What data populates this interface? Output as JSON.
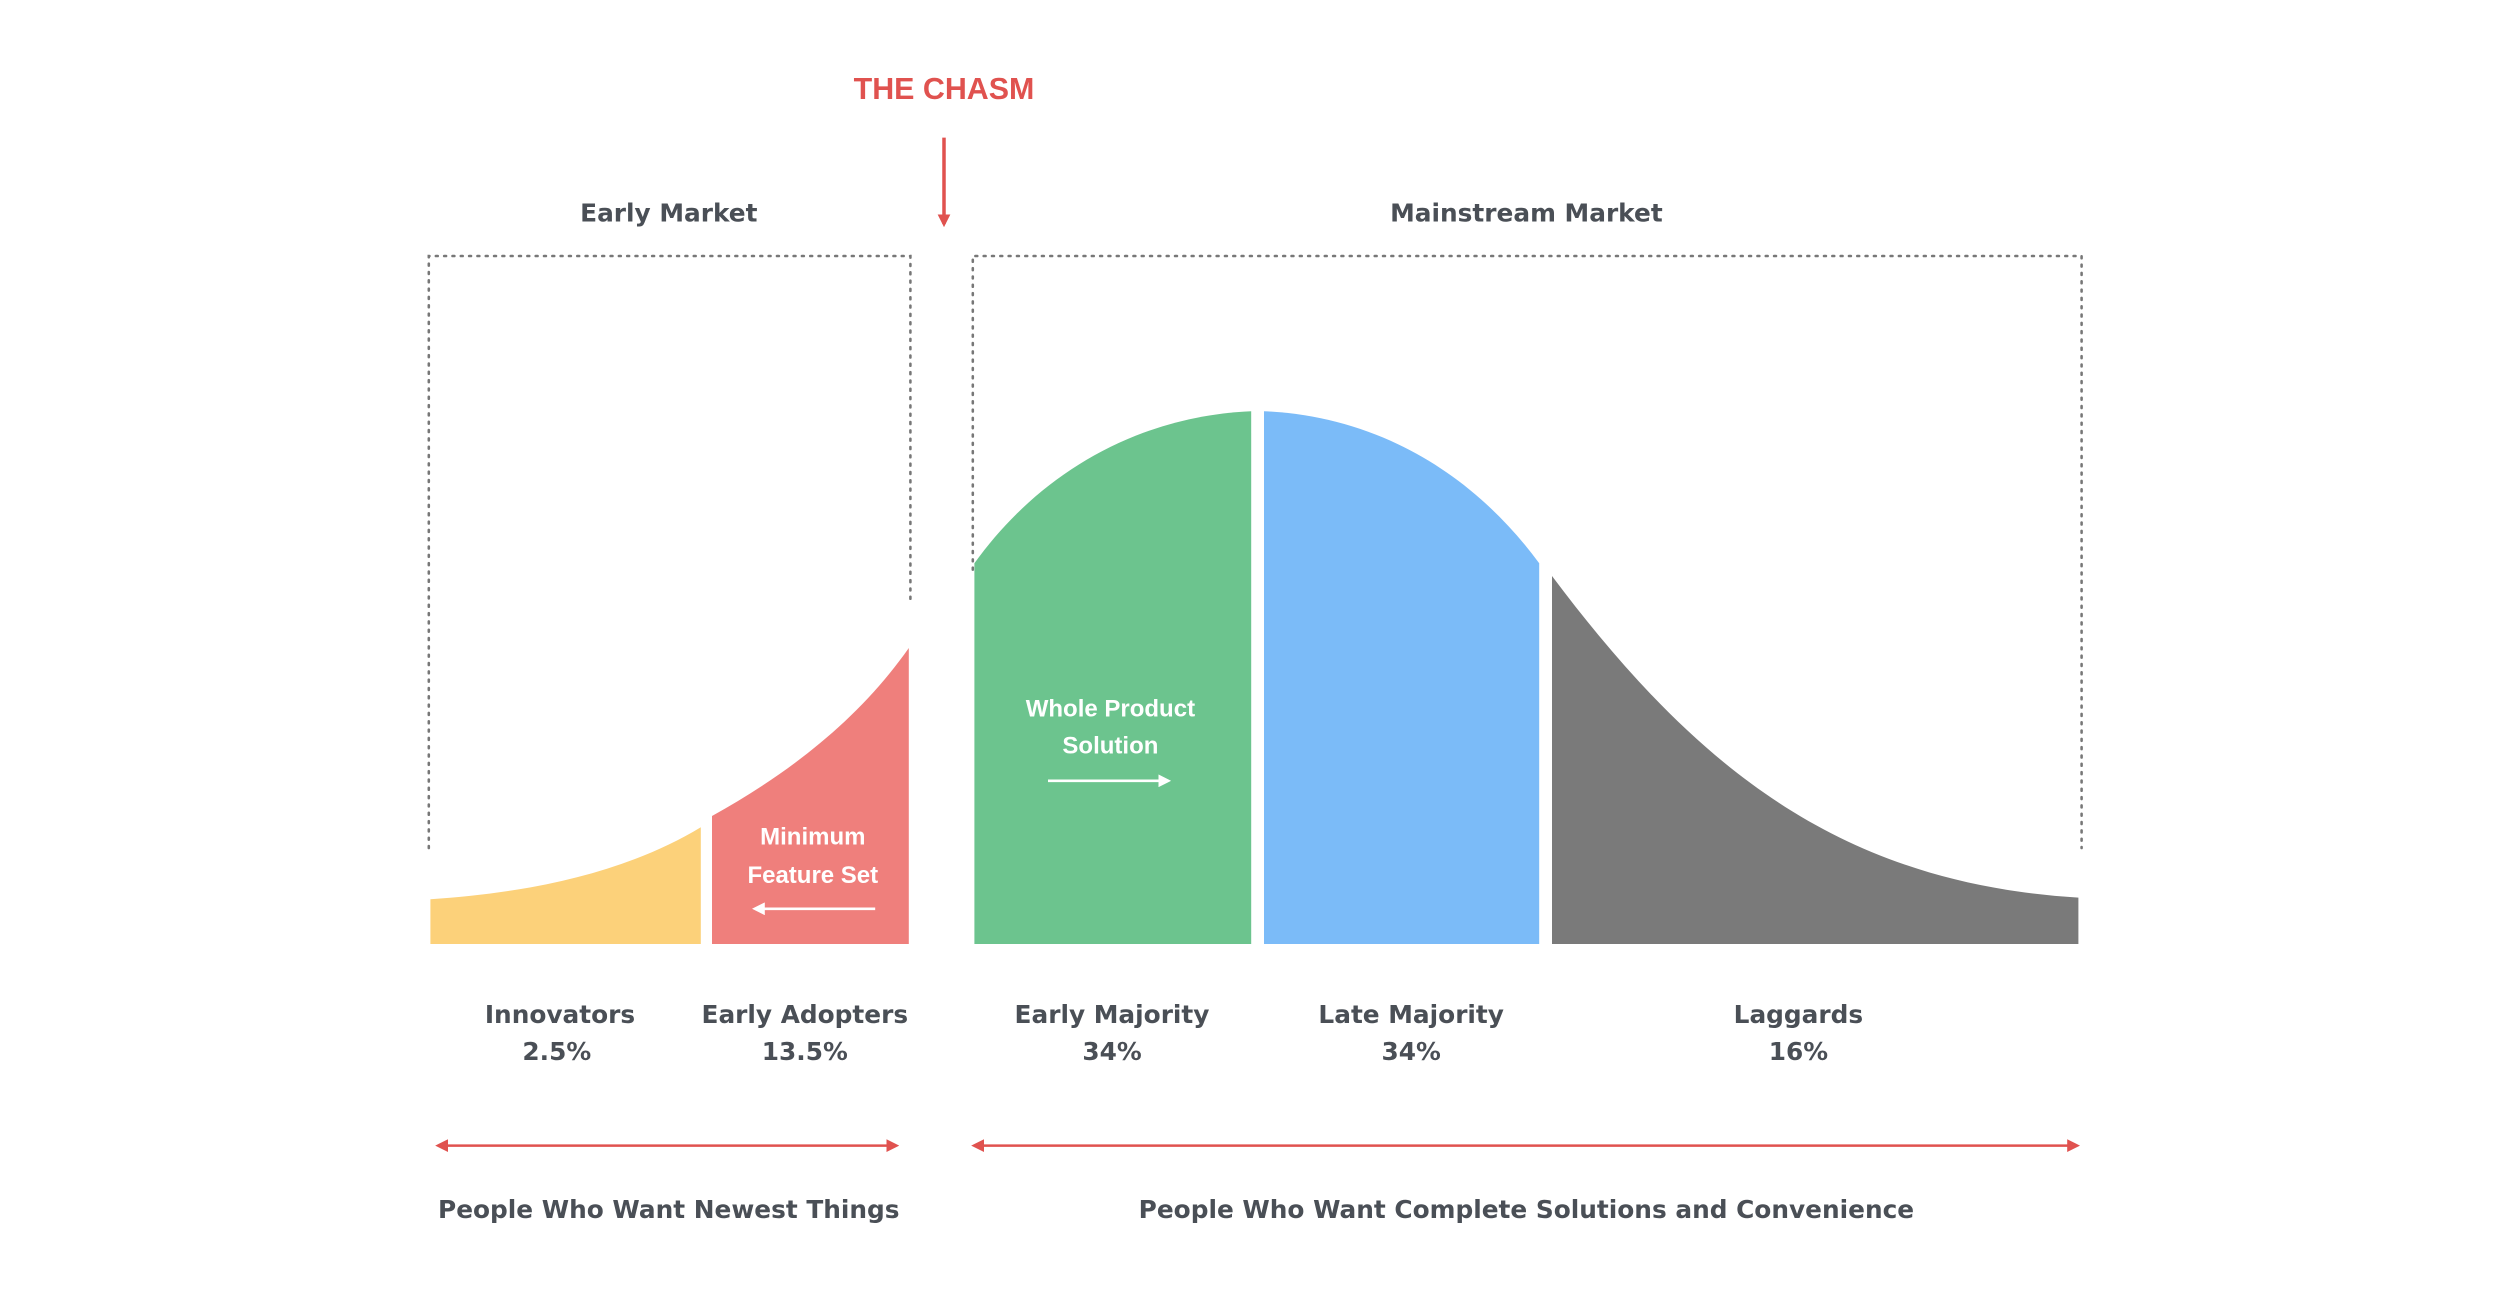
{
  "chasm_label": "THE CHASM",
  "markets": [
    {
      "title": "Early Market",
      "description": "People Who Want Newest Things"
    },
    {
      "title": "Mainstream Market",
      "description": "People Who Want Complete Solutions and Convenience"
    }
  ],
  "segments": [
    {
      "name": "Innovators",
      "share": "2.5%"
    },
    {
      "name": "Early Adopters",
      "share": "13.5%"
    },
    {
      "name": "Early Majority",
      "share": "34%"
    },
    {
      "name": "Late Majority",
      "share": "34%"
    },
    {
      "name": "Laggards",
      "share": "16%"
    }
  ],
  "annotations": [
    {
      "lines": [
        "Minimum",
        "Feature Set"
      ]
    },
    {
      "lines": [
        "Whole Product",
        "Solution"
      ]
    }
  ]
}
